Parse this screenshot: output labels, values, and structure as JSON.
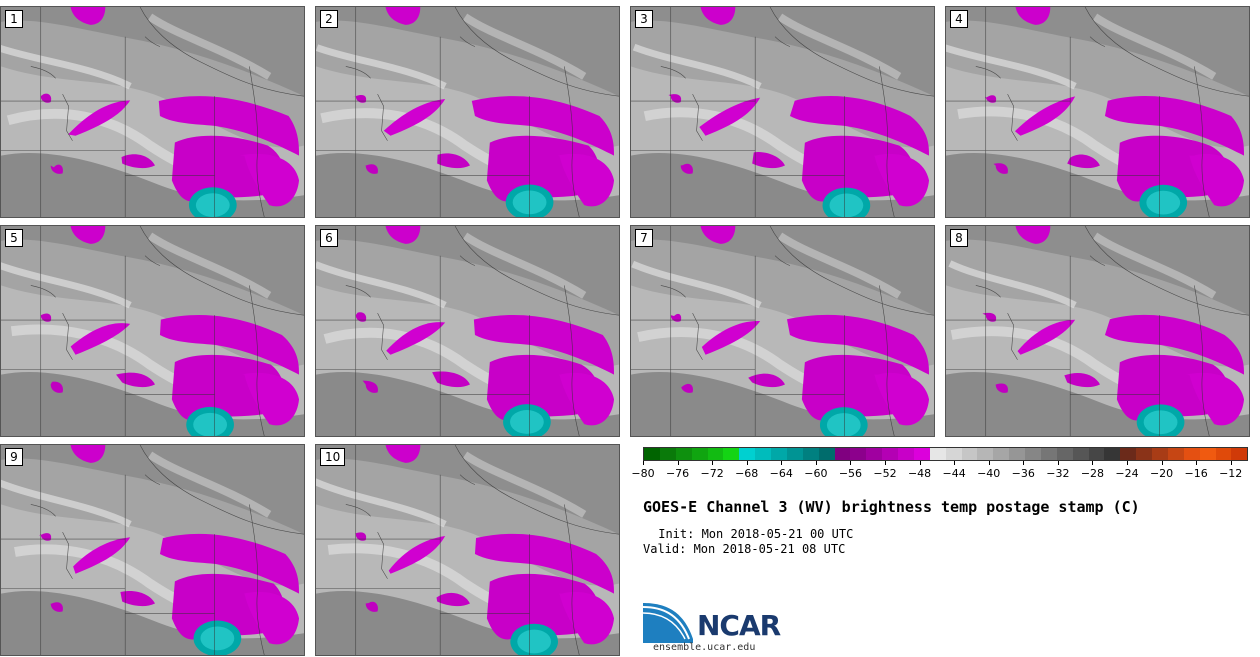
{
  "panels": [
    {
      "label": "1"
    },
    {
      "label": "2"
    },
    {
      "label": "3"
    },
    {
      "label": "4"
    },
    {
      "label": "5"
    },
    {
      "label": "6"
    },
    {
      "label": "7"
    },
    {
      "label": "8"
    },
    {
      "label": "9"
    },
    {
      "label": "10"
    }
  ],
  "colorbar": {
    "ticks": [
      "−80",
      "−76",
      "−72",
      "−68",
      "−64",
      "−60",
      "−56",
      "−52",
      "−48",
      "−44",
      "−40",
      "−36",
      "−32",
      "−28",
      "−24",
      "−20",
      "−16",
      "−12"
    ],
    "range": [
      -80,
      -10
    ],
    "segment_colors": [
      "#006400",
      "#0a7a0a",
      "#0e900e",
      "#10a510",
      "#12bb12",
      "#14d414",
      "#00d0d0",
      "#00bcbc",
      "#00a8a8",
      "#009494",
      "#008080",
      "#006c6c",
      "#800080",
      "#8c008c",
      "#a000a0",
      "#b400b4",
      "#c800c8",
      "#dc00dc",
      "#e6e6e6",
      "#d6d6d6",
      "#c6c6c6",
      "#b6b6b6",
      "#a6a6a6",
      "#969696",
      "#868686",
      "#767676",
      "#666666",
      "#565656",
      "#464646",
      "#363636",
      "#6b2a1a",
      "#8a3318",
      "#a83c16",
      "#c64614",
      "#e45012",
      "#f05a10",
      "#e04a0a",
      "#d03a08"
    ]
  },
  "title": "GOES-E Channel 3 (WV) brightness temp postage stamp (C)",
  "init": " Init: Mon 2018-05-21 00 UTC",
  "valid": "Valid: Mon 2018-05-21 08 UTC",
  "logo": {
    "text": "NCAR",
    "site": "ensemble.ucar.edu",
    "color": "#1a3a6e",
    "accent": "#1e7fc0"
  }
}
